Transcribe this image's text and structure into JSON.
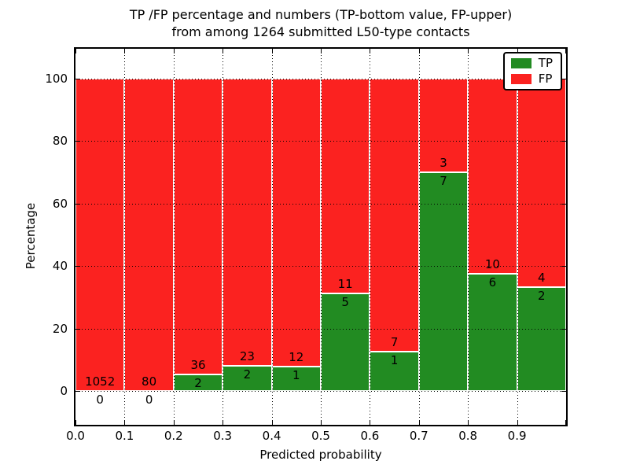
{
  "figure": {
    "title_line1": "TP /FP percentage and numbers (TP-bottom value, FP-upper)",
    "title_line2": "from among 1264 submitted L50-type contacts"
  },
  "chart_data": {
    "type": "bar",
    "stacked": true,
    "orientation": "vertical",
    "title": "TP /FP percentage and numbers (TP-bottom value, FP-upper) from among 1264 submitted L50-type contacts",
    "xlabel": "Predicted probability",
    "ylabel": "Percentage",
    "x_tick_labels": [
      "0.0",
      "0.1",
      "0.2",
      "0.3",
      "0.4",
      "0.5",
      "0.6",
      "0.7",
      "0.8",
      "0.9"
    ],
    "y_tick_values": [
      0,
      20,
      40,
      60,
      80,
      100
    ],
    "y_tick_labels": [
      "0",
      "20",
      "40",
      "60",
      "80",
      "100"
    ],
    "xlim": [
      0.0,
      1.0
    ],
    "ylim": [
      -11,
      110
    ],
    "grid": "dotted black on both axes",
    "total_contacts": 1264,
    "colors": {
      "tp": "#228b22",
      "fp": "#fb2220"
    },
    "legend": {
      "position": "upper right",
      "entries": [
        {
          "label": "TP",
          "color": "#228b22"
        },
        {
          "label": "FP",
          "color": "#fb2220"
        }
      ]
    },
    "series": [
      {
        "name": "TP",
        "color": "#228b22",
        "counts": [
          0,
          0,
          2,
          2,
          1,
          5,
          1,
          7,
          6,
          2
        ]
      },
      {
        "name": "FP",
        "color": "#fb2220",
        "counts": [
          1052,
          80,
          36,
          23,
          12,
          11,
          7,
          3,
          10,
          4
        ]
      }
    ],
    "bins": [
      {
        "range": [
          0.0,
          0.1
        ],
        "tp": 0,
        "fp": 1052,
        "tp_pct": 0.0,
        "fp_pct": 100.0
      },
      {
        "range": [
          0.1,
          0.2
        ],
        "tp": 0,
        "fp": 80,
        "tp_pct": 0.0,
        "fp_pct": 100.0
      },
      {
        "range": [
          0.2,
          0.3
        ],
        "tp": 2,
        "fp": 36,
        "tp_pct": 5.26,
        "fp_pct": 94.74
      },
      {
        "range": [
          0.3,
          0.4
        ],
        "tp": 2,
        "fp": 23,
        "tp_pct": 8.0,
        "fp_pct": 92.0
      },
      {
        "range": [
          0.4,
          0.5
        ],
        "tp": 1,
        "fp": 12,
        "tp_pct": 7.69,
        "fp_pct": 92.31
      },
      {
        "range": [
          0.5,
          0.6
        ],
        "tp": 5,
        "fp": 11,
        "tp_pct": 31.25,
        "fp_pct": 68.75
      },
      {
        "range": [
          0.6,
          0.7
        ],
        "tp": 1,
        "fp": 7,
        "tp_pct": 12.5,
        "fp_pct": 87.5
      },
      {
        "range": [
          0.7,
          0.8
        ],
        "tp": 7,
        "fp": 3,
        "tp_pct": 70.0,
        "fp_pct": 30.0
      },
      {
        "range": [
          0.8,
          0.9
        ],
        "tp": 6,
        "fp": 10,
        "tp_pct": 37.5,
        "fp_pct": 62.5
      },
      {
        "range": [
          0.9,
          1.0
        ],
        "tp": 2,
        "fp": 4,
        "tp_pct": 33.33,
        "fp_pct": 66.67
      }
    ]
  }
}
